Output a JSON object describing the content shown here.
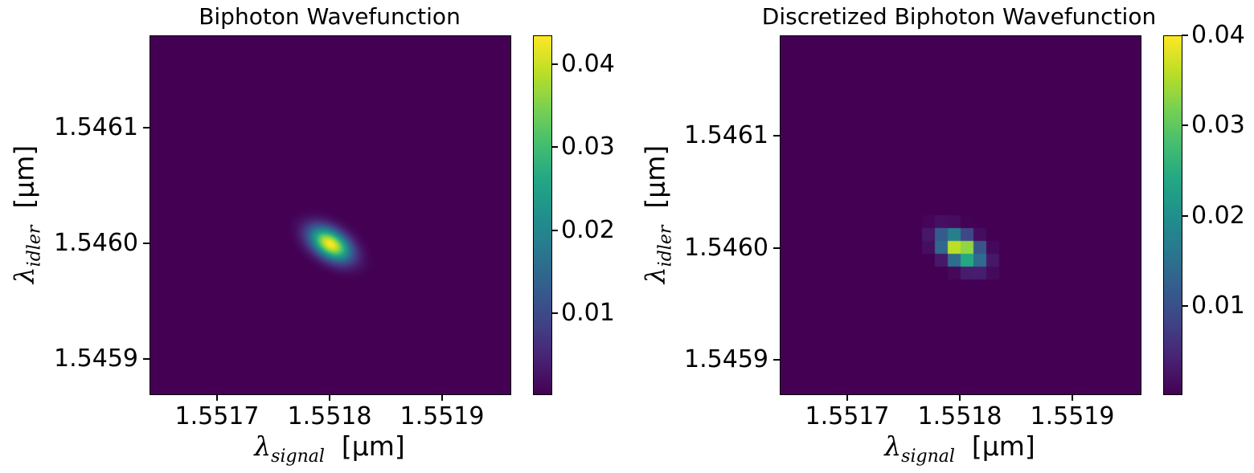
{
  "chart_data": [
    {
      "type": "heatmap",
      "title": "Biphoton Wavefunction",
      "xlabel": {
        "symbol": "λ",
        "sub": "signal",
        "unit": "[μm]"
      },
      "ylabel": {
        "symbol": "λ",
        "sub": "idler",
        "unit": "[μm]"
      },
      "xlim": [
        1.55164,
        1.55196
      ],
      "ylim": [
        1.54587,
        1.54618
      ],
      "x_ticks": [
        1.5517,
        1.5518,
        1.5519
      ],
      "x_tick_labels": [
        "1.5517",
        "1.5518",
        "1.5519"
      ],
      "y_ticks": [
        1.5459,
        1.546,
        1.5461
      ],
      "y_tick_labels": [
        "1.5459",
        "1.5460",
        "1.5461"
      ],
      "peak": {
        "x": 1.5518,
        "y": 1.546,
        "value": 0.0435
      },
      "spread": {
        "sx": 1.25e-05,
        "sy": 1e-05,
        "rho": -0.45
      },
      "discretized": false,
      "colorbar": {
        "colormap": "viridis",
        "range": [
          0.0003,
          0.0435
        ],
        "ticks": [
          0.01,
          0.02,
          0.03,
          0.04
        ],
        "tick_labels": [
          "0.01",
          "0.02",
          "0.03",
          "0.04"
        ]
      }
    },
    {
      "type": "heatmap",
      "title": "Discretized Biphoton Wavefunction",
      "xlabel": {
        "symbol": "λ",
        "sub": "signal",
        "unit": "[μm]"
      },
      "ylabel": {
        "symbol": "λ",
        "sub": "idler",
        "unit": "[μm]"
      },
      "xlim": [
        1.55164,
        1.55196
      ],
      "ylim": [
        1.54587,
        1.54619
      ],
      "x_ticks": [
        1.5517,
        1.5518,
        1.5519
      ],
      "x_tick_labels": [
        "1.5517",
        "1.5518",
        "1.5519"
      ],
      "y_ticks": [
        1.5459,
        1.546,
        1.5461
      ],
      "y_tick_labels": [
        "1.5459",
        "1.5460",
        "1.5461"
      ],
      "peak": {
        "x": 1.5518,
        "y": 1.546,
        "value": 0.04
      },
      "spread": {
        "sx": 1.25e-05,
        "sy": 1e-05,
        "rho": -0.45
      },
      "discretized": true,
      "grid_cells": 28,
      "colorbar": {
        "colormap": "viridis",
        "range": [
          0.0003,
          0.04
        ],
        "ticks": [
          0.01,
          0.02,
          0.03,
          0.04
        ],
        "tick_labels": [
          "0.01",
          "0.02",
          "0.03",
          "0.04"
        ]
      }
    }
  ]
}
